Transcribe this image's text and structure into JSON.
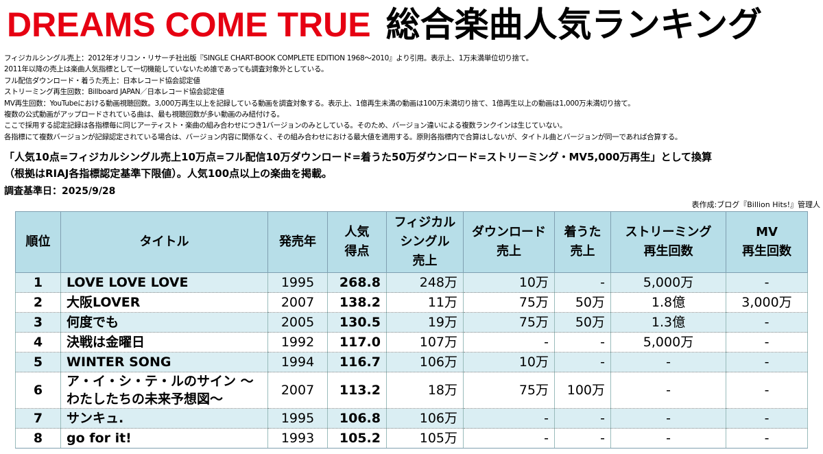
{
  "header": {
    "title_en": "DREAMS COME TRUE",
    "title_ja": "総合楽曲人気ランキング"
  },
  "notes": [
    "フィジカルシングル売上：2012年オリコン・リサーチ社出版『SINGLE CHART-BOOK COMPLETE EDITION 1968～2010』より引用。表示上、1万未満単位切り捨て。",
    "2011年以降の売上は楽曲人気指標として一切機能していないため誰であっても調査対象外としている。",
    "フル配信ダウンロード・着うた売上：日本レコード協会認定値",
    "ストリーミング再生回数：Billboard JAPAN／日本レコード協会認定値",
    "MV再生回数：YouTubeにおける動画視聴回数。3,000万再生以上を記録している動画を調査対象する。表示上、1億再生未満の動画は100万未満切り捨て、1億再生以上の動画は1,000万未満切り捨て。",
    "複数の公式動画がアップロードされている曲は、最も視聴回数が多い動画のみ紐付ける。",
    "ここで採用する認定記録は各指標毎に同じアーティスト・楽曲の組み合わせにつき1バージョンのみとしている。そのため、バージョン違いによる複数ランクインは生じていない。",
    "各指標にて複数バージョンが記録認定されている場合は、バージョン内容に関係なく、その組み合わせにおける最大値を適用する。原則各指標内で合算はしないが、タイトル曲とバージョンが同一であれば合算する。"
  ],
  "conversion": [
    "「人気10点=フィジカルシングル売上10万点=フル配信10万ダウンロード=着うた50万ダウンロード=ストリーミング・MV5,000万再生」として換算",
    "（根拠はRIAJ各指標認定基準下限値）。人気100点以上の楽曲を掲載。"
  ],
  "survey_date": "調査基準日：2025/9/28",
  "credit": "表作成:ブログ『Billion Hits!』管理人",
  "table": {
    "columns": [
      "順位",
      "タイトル",
      "発売年",
      "人気\n得点",
      "フィジカル\nシングル\n売上",
      "ダウンロード\n売上",
      "着うた\n売上",
      "ストリーミング\n再生回数",
      "MV\n再生回数"
    ],
    "rows": [
      [
        "1",
        "LOVE LOVE LOVE",
        "1995",
        "268.8",
        "248万",
        "10万",
        "-",
        "5,000万",
        "-"
      ],
      [
        "2",
        "大阪LOVER",
        "2007",
        "138.2",
        "11万",
        "75万",
        "50万",
        "1.8億",
        "3,000万"
      ],
      [
        "3",
        "何度でも",
        "2005",
        "130.5",
        "19万",
        "75万",
        "50万",
        "1.3億",
        "-"
      ],
      [
        "4",
        "決戦は金曜日",
        "1992",
        "117.0",
        "107万",
        "-",
        "-",
        "5,000万",
        "-"
      ],
      [
        "5",
        "WINTER SONG",
        "1994",
        "116.7",
        "106万",
        "10万",
        "-",
        "-",
        "-"
      ],
      [
        "6",
        "ア・イ・シ・テ・ルのサイン ～わたしたちの未来予想図～",
        "2007",
        "113.2",
        "18万",
        "75万",
        "100万",
        "-",
        "-"
      ],
      [
        "7",
        "サンキュ.",
        "1995",
        "106.8",
        "106万",
        "-",
        "-",
        "-",
        "-"
      ],
      [
        "8",
        "go for it!",
        "1993",
        "105.2",
        "105万",
        "-",
        "-",
        "-",
        "-"
      ]
    ]
  }
}
